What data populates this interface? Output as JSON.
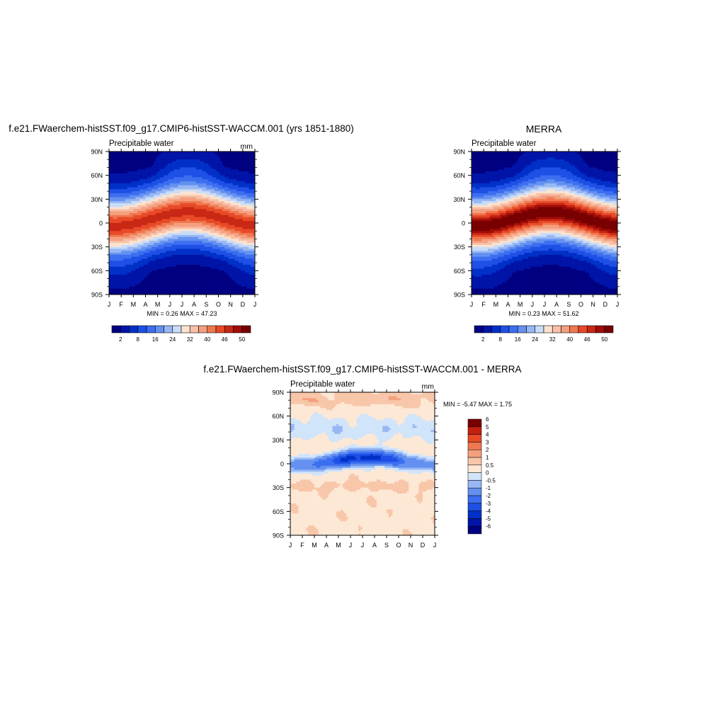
{
  "chart_data": [
    {
      "id": "panel-model",
      "type": "heatmap",
      "title": "f.e21.FWaerchem-histSST.f09_g17.CMIP6-histSST-WACCM.001 (yrs 1851-1880)",
      "subtitle_left": "Precipitable water",
      "units": "mm",
      "stats": "MIN =   0.26 MAX =  47.23",
      "x_tick_labels": [
        "J",
        "F",
        "M",
        "A",
        "M",
        "J",
        "J",
        "A",
        "S",
        "O",
        "N",
        "D",
        "J"
      ],
      "y_tick_labels": [
        "90S",
        "60S",
        "30S",
        "0",
        "30N",
        "60N",
        "90N"
      ],
      "y_range": [
        -90,
        90
      ],
      "x_range": [
        0,
        12
      ],
      "peak_value": 47.0,
      "peak_lat": 5,
      "seasonal_shift": 9,
      "colorbar": {
        "orientation": "horizontal",
        "levels": [
          2,
          5,
          8,
          12,
          16,
          20,
          24,
          28,
          32,
          36,
          40,
          43,
          46,
          48,
          50
        ],
        "tick_labels": [
          "2",
          "8",
          "16",
          "24",
          "32",
          "40",
          "46",
          "50"
        ]
      }
    },
    {
      "id": "panel-obs",
      "type": "heatmap",
      "title": "MERRA",
      "subtitle_left": "Precipitable water",
      "units": "",
      "stats": "MIN =   0.23 MAX =  51.62",
      "x_tick_labels": [
        "J",
        "F",
        "M",
        "A",
        "M",
        "J",
        "J",
        "A",
        "S",
        "O",
        "N",
        "D",
        "J"
      ],
      "y_tick_labels": [
        "90S",
        "60S",
        "30S",
        "0",
        "30N",
        "60N",
        "90N"
      ],
      "y_range": [
        -90,
        90
      ],
      "x_range": [
        0,
        12
      ],
      "peak_value": 51.5,
      "peak_lat": 5,
      "seasonal_shift": 9,
      "colorbar": {
        "orientation": "horizontal",
        "levels": [
          2,
          5,
          8,
          12,
          16,
          20,
          24,
          28,
          32,
          36,
          40,
          43,
          46,
          48,
          50
        ],
        "tick_labels": [
          "2",
          "8",
          "16",
          "24",
          "32",
          "40",
          "46",
          "50"
        ]
      }
    },
    {
      "id": "panel-diff",
      "type": "heatmap",
      "title": "f.e21.FWaerchem-histSST.f09_g17.CMIP6-histSST-WACCM.001 - MERRA",
      "subtitle_left": "Precipitable water",
      "units": "mm",
      "stats": "MIN =  -5.47 MAX =   1.75",
      "x_tick_labels": [
        "J",
        "F",
        "M",
        "A",
        "M",
        "J",
        "J",
        "A",
        "S",
        "O",
        "N",
        "D",
        "J"
      ],
      "y_tick_labels": [
        "90S",
        "60S",
        "30S",
        "0",
        "30N",
        "60N",
        "90N"
      ],
      "y_range": [
        -90,
        90
      ],
      "x_range": [
        0,
        12
      ],
      "colorbar": {
        "orientation": "vertical",
        "levels": [
          -6,
          -5,
          -4,
          -3,
          -2,
          -1,
          -0.5,
          0,
          0.5,
          1,
          2,
          3,
          4,
          5,
          6
        ],
        "tick_labels": [
          "-6",
          "-5",
          "-4",
          "-3",
          "-2",
          "-1",
          "-0.5",
          "0",
          "0.5",
          "1",
          "2",
          "3",
          "4",
          "5",
          "6"
        ]
      }
    }
  ],
  "palette": {
    "absolute": [
      "#000080",
      "#0014a8",
      "#0030c8",
      "#1e50e6",
      "#3c6ef0",
      "#6490f0",
      "#98b8f4",
      "#c8dcf8",
      "#fbe3d0",
      "#f8c0a8",
      "#f4a080",
      "#f07850",
      "#e84a28",
      "#c82814",
      "#a00c08",
      "#780000"
    ],
    "difference": [
      "#000080",
      "#0014a8",
      "#0030c8",
      "#1e50e6",
      "#3c6ef0",
      "#6490f0",
      "#98b8f4",
      "#d0e4fa",
      "#fde8d6",
      "#f8c6a8",
      "#f4a07e",
      "#f07850",
      "#e84a28",
      "#c42010",
      "#780000"
    ]
  }
}
